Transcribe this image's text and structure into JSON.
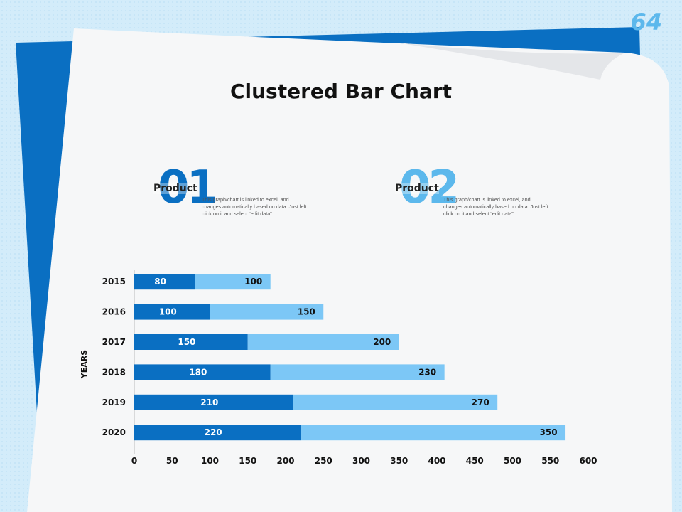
{
  "page_number": "64",
  "title": "Clustered Bar Chart",
  "colors": {
    "series1": "#0a6fc2",
    "series2": "#7cc7f6",
    "dark_blue": "#0a6fc2",
    "light_blue": "#5cb8ec"
  },
  "products": [
    {
      "number": "01",
      "label": "Product",
      "description": "This graph/chart is linked to excel, and changes automatically based on data. Just left click on it and select “edit data”."
    },
    {
      "number": "02",
      "label": "Product",
      "description": "This graph/chart is linked to excel, and changes automatically based on data. Just left click on it and select “edit data”."
    }
  ],
  "chart_data": {
    "type": "bar",
    "orientation": "horizontal",
    "stacked": true,
    "title": "Clustered Bar Chart",
    "ylabel": "YEARS",
    "xlabel": "",
    "categories": [
      "2015",
      "2016",
      "2017",
      "2018",
      "2019",
      "2020"
    ],
    "series": [
      {
        "name": "Product 01",
        "values": [
          80,
          100,
          150,
          180,
          210,
          220
        ]
      },
      {
        "name": "Product 02",
        "values": [
          100,
          150,
          200,
          230,
          270,
          350
        ]
      }
    ],
    "xlim": [
      0,
      600
    ],
    "xticks": [
      0,
      50,
      100,
      150,
      200,
      250,
      300,
      350,
      400,
      450,
      500,
      550,
      600
    ],
    "grid": false,
    "legend": "none"
  }
}
